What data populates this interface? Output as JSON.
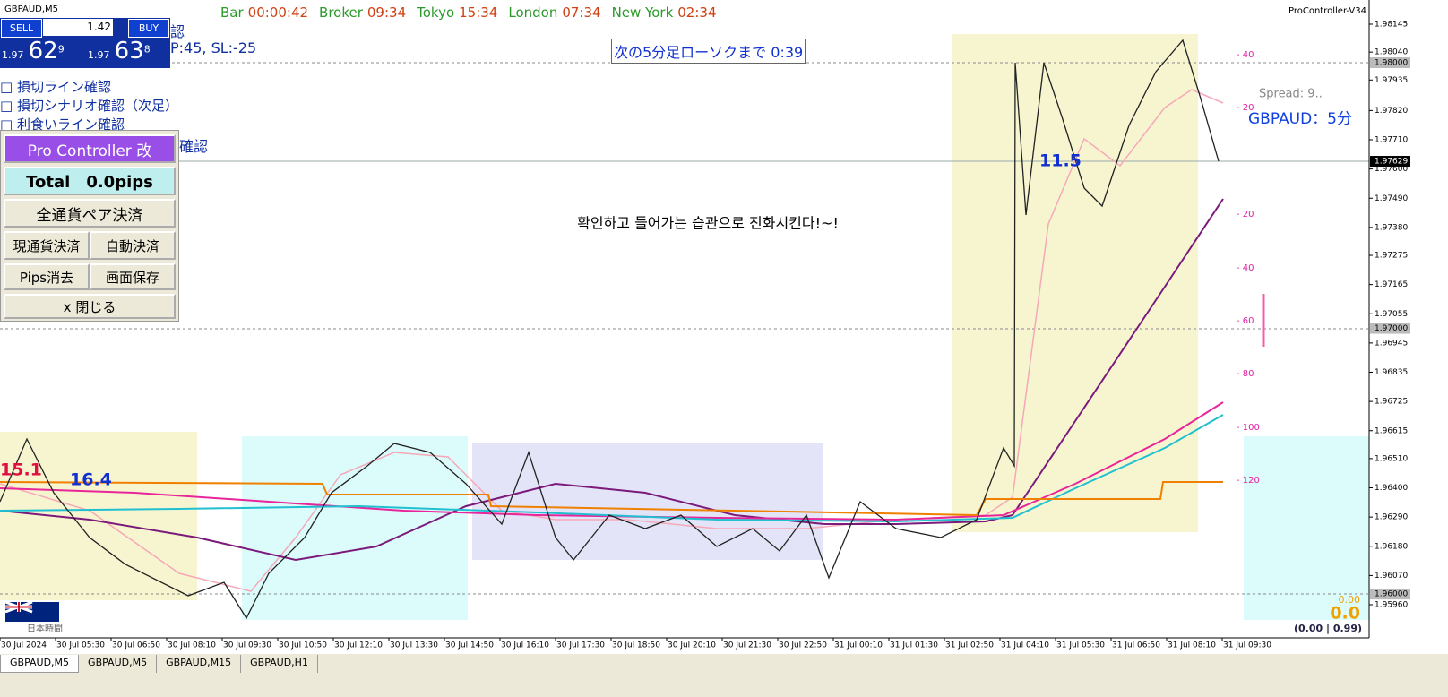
{
  "window_title": "GBPAUD,M5",
  "sessions": [
    {
      "label": "Bar",
      "time": "00:00:42"
    },
    {
      "label": "Broker",
      "time": "09:34"
    },
    {
      "label": "Tokyo",
      "time": "15:34"
    },
    {
      "label": "London",
      "time": "07:34"
    },
    {
      "label": "New York",
      "time": "02:34"
    }
  ],
  "indicator_label": "ProController-V34",
  "trade_panel": {
    "sell": "SELL",
    "buy": "BUY",
    "lot": "1.42",
    "sell_prefix": "1.97",
    "sell_big": "62",
    "sell_sup": "9",
    "buy_prefix": "1.97",
    "buy_big": "63",
    "buy_sup": "8"
  },
  "hidden_texts": [
    "認",
    "P:45, SL:-25",
    "確認"
  ],
  "checklist": [
    "損切ライン確認",
    "損切シナリオ確認（次足）",
    "利食いライン確認"
  ],
  "countdown": "次の5分足ローソクまで 0:39",
  "annotation": "확인하고 들어가는 습관으로 진화시킨다!~!",
  "controller": {
    "title": "Pro Controller 改",
    "total": "Total　0.0pips",
    "close_all": "全通貨ペア決済",
    "close_current": "現通貨決済",
    "auto_close": "自動決済",
    "pips_clear": "Pips消去",
    "save_screen": "画面保存",
    "close": "x 閉じる"
  },
  "spread": "Spread: 9..",
  "symbol_label": "GBPAUD：5分",
  "box_labels": [
    "11.5",
    "16.4",
    "15.1"
  ],
  "price_axis": [
    "1.98145",
    "1.98040",
    "1.97935",
    "1.97820",
    "1.97710",
    "1.97600",
    "1.97490",
    "1.97380",
    "1.97275",
    "1.97165",
    "1.97055",
    "1.96945",
    "1.96835",
    "1.96725",
    "1.96615",
    "1.96510",
    "1.96400",
    "1.96290",
    "1.96180",
    "1.96070",
    "1.95960"
  ],
  "price_highlights": [
    "1.98000",
    "1.97629",
    "1.97000",
    "1.96000"
  ],
  "pips_scale": [
    "- 40",
    "- 20",
    "- 20",
    "- 40",
    "- 60",
    "- 80",
    "- 100",
    "- 120"
  ],
  "time_axis": [
    "30 Jul 2024",
    "30 Jul 05:30",
    "30 Jul 06:50",
    "30 Jul 08:10",
    "30 Jul 09:30",
    "30 Jul 10:50",
    "30 Jul 12:10",
    "30 Jul 13:30",
    "30 Jul 14:50",
    "30 Jul 16:10",
    "30 Jul 17:30",
    "30 Jul 18:50",
    "30 Jul 20:10",
    "30 Jul 21:30",
    "30 Jul 22:50",
    "31 Jul 00:10",
    "31 Jul 01:30",
    "31 Jul 02:50",
    "31 Jul 04:10",
    "31 Jul 05:30",
    "31 Jul 06:50",
    "31 Jul 08:10",
    "31 Jul 09:30"
  ],
  "profit": {
    "small": "0.00",
    "big": "0.0",
    "range": "(0.00 | 0.99)"
  },
  "timezone_label": "日本時間",
  "tabs": [
    "GBPAUD,M5",
    "GBPAUD,M5",
    "GBPAUD,M15",
    "GBPAUD,H1"
  ]
}
